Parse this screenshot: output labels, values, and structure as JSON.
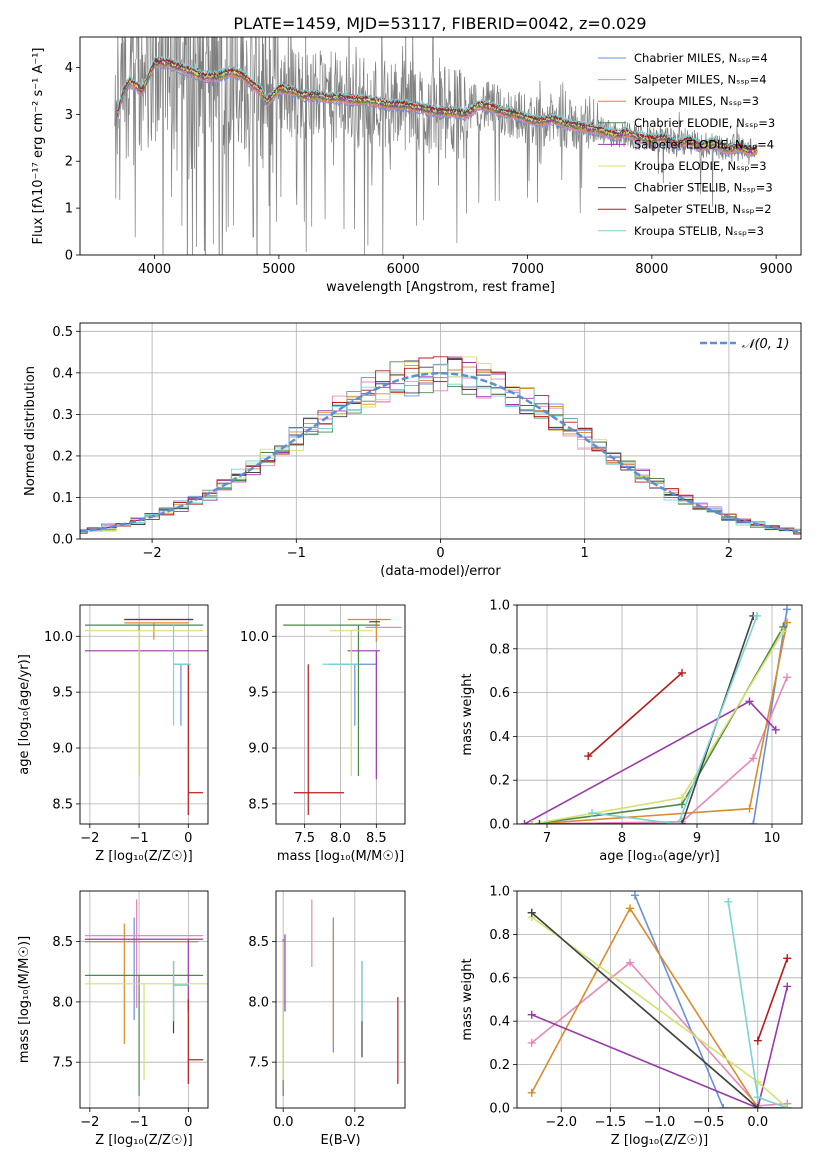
{
  "title": "PLATE=1459, MJD=53117, FIBERID=0042, z=0.029",
  "colors": {
    "Chabrier MILES": "#6a8fdc",
    "Salpeter MILES": "#e887b8",
    "Kroupa MILES": "#d98b2e",
    "Chabrier ELODIE": "#4a8a4a",
    "Salpeter ELODIE": "#9a3aaa",
    "Kroupa ELODIE": "#d4e070",
    "Chabrier STELIB": "#444444",
    "Salpeter STELIB": "#b81c1c",
    "Kroupa STELIB": "#7ad4d4",
    "data": "#7f7f7f",
    "normal": "#5b8fd6"
  },
  "chart_data": [
    {
      "id": "spectrum",
      "type": "line",
      "title": "PLATE=1459, MJD=53117, FIBERID=0042, z=0.029",
      "xlabel": "wavelength [Angstrom, rest frame]",
      "ylabel": "Flux [fλ10⁻¹⁷ erg cm⁻² s⁻¹ A⁻¹]",
      "xlim": [
        3400,
        9200
      ],
      "ylim": [
        0,
        4.65
      ],
      "xticks": [
        4000,
        5000,
        6000,
        7000,
        8000,
        9000
      ],
      "yticks": [
        0,
        1,
        2,
        3,
        4
      ],
      "legend_position": "top-right",
      "legend": [
        "Chabrier MILES, Nₛₛₚ=4",
        "Salpeter MILES, Nₛₛₚ=4",
        "Kroupa MILES, Nₛₛₚ=3",
        "Chabrier ELODIE, Nₛₛₚ=3",
        "Salpeter ELODIE, Nₛₛₚ=4",
        "Kroupa ELODIE, Nₛₛₚ=3",
        "Chabrier STELIB, Nₛₛₚ=3",
        "Salpeter STELIB, Nₛₛₚ=2",
        "Kroupa STELIB, Nₛₛₚ=3"
      ],
      "legend_series": [
        "Chabrier MILES",
        "Salpeter MILES",
        "Kroupa MILES",
        "Chabrier ELODIE",
        "Salpeter ELODIE",
        "Kroupa ELODIE",
        "Chabrier STELIB",
        "Salpeter STELIB",
        "Kroupa STELIB"
      ],
      "model_shape": {
        "x": [
          3700,
          3750,
          3800,
          3900,
          4000,
          4100,
          4200,
          4300,
          4400,
          4500,
          4600,
          4700,
          4800,
          4860,
          4900,
          5000,
          5100,
          5200,
          5300,
          5400,
          5500,
          5600,
          5700,
          5800,
          5900,
          6000,
          6100,
          6200,
          6300,
          6400,
          6500,
          6560,
          6600,
          6700,
          6800,
          6900,
          7000,
          7100,
          7200,
          7300,
          7400,
          7500,
          7600,
          7700,
          7800,
          7900,
          8000,
          8100,
          8200,
          8300,
          8400,
          8500,
          8600,
          8700,
          8800,
          8850
        ],
        "y": [
          3.0,
          3.5,
          3.7,
          3.5,
          4.1,
          4.1,
          4.0,
          3.9,
          3.8,
          3.8,
          3.9,
          3.85,
          3.6,
          3.5,
          3.25,
          3.55,
          3.5,
          3.4,
          3.4,
          3.35,
          3.35,
          3.3,
          3.3,
          3.25,
          3.2,
          3.2,
          3.15,
          3.1,
          3.05,
          3.05,
          3.0,
          3.1,
          3.2,
          3.15,
          3.05,
          3.0,
          2.9,
          2.85,
          2.9,
          2.8,
          2.75,
          2.7,
          2.65,
          2.55,
          2.6,
          2.5,
          2.45,
          2.5,
          2.35,
          2.45,
          2.3,
          2.4,
          2.25,
          2.3,
          2.2,
          2.25
        ]
      },
      "data_envelope": {
        "x": [
          3680,
          8800
        ],
        "y_low": 0,
        "y_high": 4.65
      }
    },
    {
      "id": "residuals",
      "type": "histogram",
      "xlabel": "(data-model)/error",
      "ylabel": "Normed distribution",
      "xlim": [
        -2.5,
        2.5
      ],
      "ylim": [
        0,
        0.52
      ],
      "xticks": [
        -2,
        -1,
        0,
        1,
        2
      ],
      "yticks": [
        0,
        0.1,
        0.2,
        0.3,
        0.4,
        0.5
      ],
      "legend": [
        "𝒩(0, 1)"
      ],
      "legend_position": "top-right",
      "bin_width": 0.1,
      "grid": true
    },
    {
      "id": "age-vs-Z",
      "type": "errorbar",
      "xlabel": "Z [log₁₀(Z/Z☉)]",
      "ylabel": "age  [log₁₀(age/yr)]",
      "xlim": [
        -2.2,
        0.4
      ],
      "ylim": [
        8.32,
        10.28
      ],
      "xticks": [
        -2,
        -1,
        0
      ],
      "yticks": [
        8.5,
        9.0,
        9.5,
        10.0
      ],
      "series": [
        {
          "name": "Chabrier MILES",
          "x": -0.15,
          "xerr": [
            0.15,
            0.15
          ],
          "y": 9.75,
          "yerr": [
            0.55,
            0.0
          ]
        },
        {
          "name": "Salpeter MILES",
          "x": -0.6,
          "xerr": [
            0.7,
            0.7
          ],
          "y": 10.15,
          "yerr": [
            0.0,
            0.0
          ]
        },
        {
          "name": "Kroupa MILES",
          "x": -0.7,
          "xerr": [
            0.6,
            0.7
          ],
          "y": 10.12,
          "yerr": [
            0.15,
            0.0
          ]
        },
        {
          "name": "Chabrier ELODIE",
          "x": -1.0,
          "xerr": [
            1.1,
            1.3
          ],
          "y": 10.1,
          "yerr": [
            1.35,
            0.0
          ]
        },
        {
          "name": "Salpeter ELODIE",
          "x": -0.9,
          "xerr": [
            1.2,
            1.3
          ],
          "y": 9.87,
          "yerr": [
            0.0,
            0.0
          ]
        },
        {
          "name": "Kroupa ELODIE",
          "x": -1.0,
          "xerr": [
            1.1,
            1.3
          ],
          "y": 10.05,
          "yerr": [
            1.3,
            0.0
          ]
        },
        {
          "name": "Chabrier STELIB",
          "x": -0.6,
          "xerr": [
            0.7,
            0.7
          ],
          "y": 10.15,
          "yerr": [
            0.0,
            0.0
          ]
        },
        {
          "name": "Salpeter STELIB",
          "x": 0.0,
          "xerr": [
            0.0,
            0.3
          ],
          "y": 8.6,
          "yerr": [
            0.2,
            1.15
          ]
        },
        {
          "name": "Kroupa STELIB",
          "x": -0.3,
          "xerr": [
            0.0,
            0.35
          ],
          "y": 9.75,
          "yerr": [
            0.55,
            0.35
          ]
        }
      ]
    },
    {
      "id": "age-vs-mass",
      "type": "errorbar",
      "xlabel": "mass [log₁₀(M/M☉)]",
      "ylabel": "",
      "xlim": [
        7.1,
        8.9
      ],
      "ylim": [
        8.32,
        10.28
      ],
      "xticks": [
        7.5,
        8.0,
        8.5
      ],
      "yticks": [
        8.5,
        9.0,
        9.5,
        10.0
      ],
      "series": [
        {
          "name": "Chabrier MILES",
          "x": 8.2,
          "xerr": [
            0.35,
            0.3
          ],
          "y": 9.75,
          "yerr": [
            0.55,
            0.0
          ]
        },
        {
          "name": "Salpeter MILES",
          "x": 8.55,
          "xerr": [
            0.2,
            0.3
          ],
          "y": 10.08,
          "yerr": [
            0.0,
            0.0
          ]
        },
        {
          "name": "Kroupa MILES",
          "x": 8.5,
          "xerr": [
            0.4,
            0.2
          ],
          "y": 10.15,
          "yerr": [
            0.2,
            0.0
          ]
        },
        {
          "name": "Chabrier ELODIE",
          "x": 8.25,
          "xerr": [
            1.05,
            0.3
          ],
          "y": 10.1,
          "yerr": [
            1.35,
            0.0
          ]
        },
        {
          "name": "Salpeter ELODIE",
          "x": 8.5,
          "xerr": [
            0.4,
            0.05
          ],
          "y": 9.87,
          "yerr": [
            1.15,
            0.0
          ]
        },
        {
          "name": "Kroupa ELODIE",
          "x": 8.15,
          "xerr": [
            0.3,
            0.3
          ],
          "y": 10.05,
          "yerr": [
            1.3,
            0.0
          ]
        },
        {
          "name": "Chabrier STELIB",
          "x": 8.5,
          "xerr": [
            0.1,
            0.05
          ],
          "y": 10.13,
          "yerr": [
            0.0,
            0.0
          ]
        },
        {
          "name": "Salpeter STELIB",
          "x": 7.55,
          "xerr": [
            0.2,
            0.5
          ],
          "y": 8.6,
          "yerr": [
            0.2,
            1.15
          ]
        },
        {
          "name": "Kroupa STELIB",
          "x": 7.75,
          "xerr": [
            0.0,
            0.5
          ],
          "y": 9.75,
          "yerr": [
            0.0,
            0.0
          ]
        }
      ]
    },
    {
      "id": "weight-vs-age",
      "type": "line",
      "xlabel": "age  [log₁₀(age/yr)]",
      "ylabel": "mass weight",
      "xlim": [
        6.6,
        10.4
      ],
      "ylim": [
        0,
        1.0
      ],
      "xticks": [
        7,
        8,
        9,
        10
      ],
      "yticks": [
        0.0,
        0.2,
        0.4,
        0.6,
        0.8,
        1.0
      ],
      "series": [
        {
          "name": "Chabrier MILES",
          "x": [
            6.8,
            8.8,
            9.75,
            10.2
          ],
          "y": [
            0.0,
            0.0,
            0.0,
            0.98
          ]
        },
        {
          "name": "Salpeter MILES",
          "x": [
            6.8,
            8.8,
            9.75,
            10.2
          ],
          "y": [
            0.0,
            0.01,
            0.3,
            0.67
          ]
        },
        {
          "name": "Kroupa MILES",
          "x": [
            6.8,
            9.7,
            10.2
          ],
          "y": [
            0.0,
            0.07,
            0.92
          ]
        },
        {
          "name": "Chabrier ELODIE",
          "x": [
            6.8,
            8.8,
            10.15
          ],
          "y": [
            0.0,
            0.09,
            0.9
          ]
        },
        {
          "name": "Salpeter ELODIE",
          "x": [
            6.7,
            9.7,
            10.05
          ],
          "y": [
            0.0,
            0.56,
            0.43
          ]
        },
        {
          "name": "Kroupa ELODIE",
          "x": [
            6.8,
            8.8,
            10.15
          ],
          "y": [
            0.0,
            0.12,
            0.88
          ]
        },
        {
          "name": "Chabrier STELIB",
          "x": [
            6.9,
            8.8,
            9.75
          ],
          "y": [
            0.0,
            0.0,
            0.95
          ]
        },
        {
          "name": "Salpeter STELIB",
          "x": [
            7.55,
            8.8
          ],
          "y": [
            0.31,
            0.69
          ]
        },
        {
          "name": "Kroupa STELIB",
          "x": [
            7.6,
            8.75,
            9.8
          ],
          "y": [
            0.05,
            0.0,
            0.95
          ]
        }
      ]
    },
    {
      "id": "mass-vs-Z",
      "type": "errorbar",
      "xlabel": "Z [log₁₀(Z/Z☉)]",
      "ylabel": "mass [log₁₀(M/M☉)]",
      "xlim": [
        -2.2,
        0.4
      ],
      "ylim": [
        7.12,
        8.92
      ],
      "xticks": [
        -2,
        -1,
        0
      ],
      "yticks": [
        7.5,
        8.0,
        8.5
      ],
      "series": [
        {
          "name": "Chabrier MILES",
          "x": -1.1,
          "xerr": [
            1.0,
            1.3
          ],
          "y": 8.5,
          "yerr": [
            0.65,
            0.2
          ]
        },
        {
          "name": "Salpeter MILES",
          "x": -1.05,
          "xerr": [
            1.05,
            1.35
          ],
          "y": 8.55,
          "yerr": [
            0.6,
            0.3
          ]
        },
        {
          "name": "Kroupa MILES",
          "x": -1.3,
          "xerr": [
            0.8,
            1.5
          ],
          "y": 8.5,
          "yerr": [
            0.85,
            0.15
          ]
        },
        {
          "name": "Chabrier ELODIE",
          "x": -1.0,
          "xerr": [
            1.1,
            1.3
          ],
          "y": 8.22,
          "yerr": [
            1.0,
            0.0
          ]
        },
        {
          "name": "Salpeter ELODIE",
          "x": 0.0,
          "xerr": [
            2.1,
            0.3
          ],
          "y": 8.52,
          "yerr": [
            0.6,
            0.0
          ]
        },
        {
          "name": "Kroupa ELODIE",
          "x": -0.9,
          "xerr": [
            1.2,
            1.4
          ],
          "y": 8.15,
          "yerr": [
            0.8,
            0.0
          ]
        },
        {
          "name": "Chabrier STELIB",
          "x": -0.3,
          "xerr": [
            0.0,
            0.3
          ],
          "y": 8.14,
          "yerr": [
            0.4,
            0.2
          ]
        },
        {
          "name": "Salpeter STELIB",
          "x": 0.0,
          "xerr": [
            0.0,
            0.3
          ],
          "y": 7.52,
          "yerr": [
            0.2,
            0.5
          ]
        },
        {
          "name": "Kroupa STELIB",
          "x": -0.3,
          "xerr": [
            0.0,
            0.3
          ],
          "y": 8.14,
          "yerr": [
            0.3,
            0.2
          ]
        }
      ]
    },
    {
      "id": "mass-vs-ebv",
      "type": "errorbar",
      "xlabel": "E(B-V)",
      "ylabel": "",
      "xlim": [
        -0.02,
        0.34
      ],
      "ylim": [
        7.12,
        8.92
      ],
      "xticks": [
        0.0,
        0.2
      ],
      "yticks": [
        7.5,
        8.0,
        8.5
      ],
      "series": [
        {
          "name": "Chabrier MILES",
          "x": 0.14,
          "xerr": [
            0,
            0
          ],
          "y": 8.5,
          "yerr": [
            0.92,
            0.2
          ]
        },
        {
          "name": "Salpeter MILES",
          "x": 0.08,
          "xerr": [
            0,
            0
          ],
          "y": 8.55,
          "yerr": [
            0.26,
            0.3
          ]
        },
        {
          "name": "Kroupa MILES",
          "x": 0.14,
          "xerr": [
            0,
            0
          ],
          "y": 8.5,
          "yerr": [
            0.85,
            0.15
          ]
        },
        {
          "name": "Chabrier ELODIE",
          "x": 0.0,
          "xerr": [
            0,
            0
          ],
          "y": 8.22,
          "yerr": [
            1.0,
            0.3
          ]
        },
        {
          "name": "Salpeter ELODIE",
          "x": 0.005,
          "xerr": [
            0,
            0
          ],
          "y": 8.52,
          "yerr": [
            0.6,
            0.04
          ]
        },
        {
          "name": "Kroupa ELODIE",
          "x": 0.0,
          "xerr": [
            0,
            0
          ],
          "y": 8.15,
          "yerr": [
            0.8,
            0.35
          ]
        },
        {
          "name": "Chabrier STELIB",
          "x": 0.22,
          "xerr": [
            0,
            0
          ],
          "y": 8.14,
          "yerr": [
            0.6,
            0.2
          ]
        },
        {
          "name": "Salpeter STELIB",
          "x": 0.32,
          "xerr": [
            0,
            0
          ],
          "y": 7.52,
          "yerr": [
            0.2,
            0.52
          ]
        },
        {
          "name": "Kroupa STELIB",
          "x": 0.22,
          "xerr": [
            0,
            0
          ],
          "y": 8.14,
          "yerr": [
            0.3,
            0.2
          ]
        }
      ]
    },
    {
      "id": "weight-vs-Z",
      "type": "line",
      "xlabel": "Z [log₁₀(Z/Z☉)]",
      "ylabel": "mass weight",
      "xlim": [
        -2.45,
        0.45
      ],
      "ylim": [
        0,
        1.0
      ],
      "xticks": [
        -2.0,
        -1.5,
        -1.0,
        -0.5,
        0.0
      ],
      "yticks": [
        0.0,
        0.2,
        0.4,
        0.6,
        0.8,
        1.0
      ],
      "series": [
        {
          "name": "Chabrier MILES",
          "x": [
            -1.25,
            -0.35,
            0.0,
            0.3
          ],
          "y": [
            0.98,
            0.0,
            0.0,
            0.0
          ]
        },
        {
          "name": "Salpeter MILES",
          "x": [
            -2.3,
            -1.3,
            0.0,
            0.3
          ],
          "y": [
            0.3,
            0.67,
            0.01,
            0.02
          ]
        },
        {
          "name": "Kroupa MILES",
          "x": [
            -2.3,
            -1.3,
            0.0
          ],
          "y": [
            0.07,
            0.92,
            0.0
          ]
        },
        {
          "name": "Chabrier ELODIE",
          "x": [
            -2.3,
            0.0,
            0.3
          ],
          "y": [
            0.9,
            0.0,
            0.0
          ]
        },
        {
          "name": "Salpeter ELODIE",
          "x": [
            -2.3,
            0.0,
            0.3
          ],
          "y": [
            0.43,
            0.0,
            0.56
          ]
        },
        {
          "name": "Kroupa ELODIE",
          "x": [
            -2.3,
            0.0,
            0.3
          ],
          "y": [
            0.88,
            0.12,
            0.0
          ]
        },
        {
          "name": "Chabrier STELIB",
          "x": [
            -2.3,
            0.0
          ],
          "y": [
            0.9,
            0.0
          ]
        },
        {
          "name": "Salpeter STELIB",
          "x": [
            0.0,
            0.3
          ],
          "y": [
            0.31,
            0.69
          ]
        },
        {
          "name": "Kroupa STELIB",
          "x": [
            -0.3,
            0.0,
            0.3
          ],
          "y": [
            0.95,
            0.05,
            0.0
          ]
        }
      ]
    }
  ]
}
